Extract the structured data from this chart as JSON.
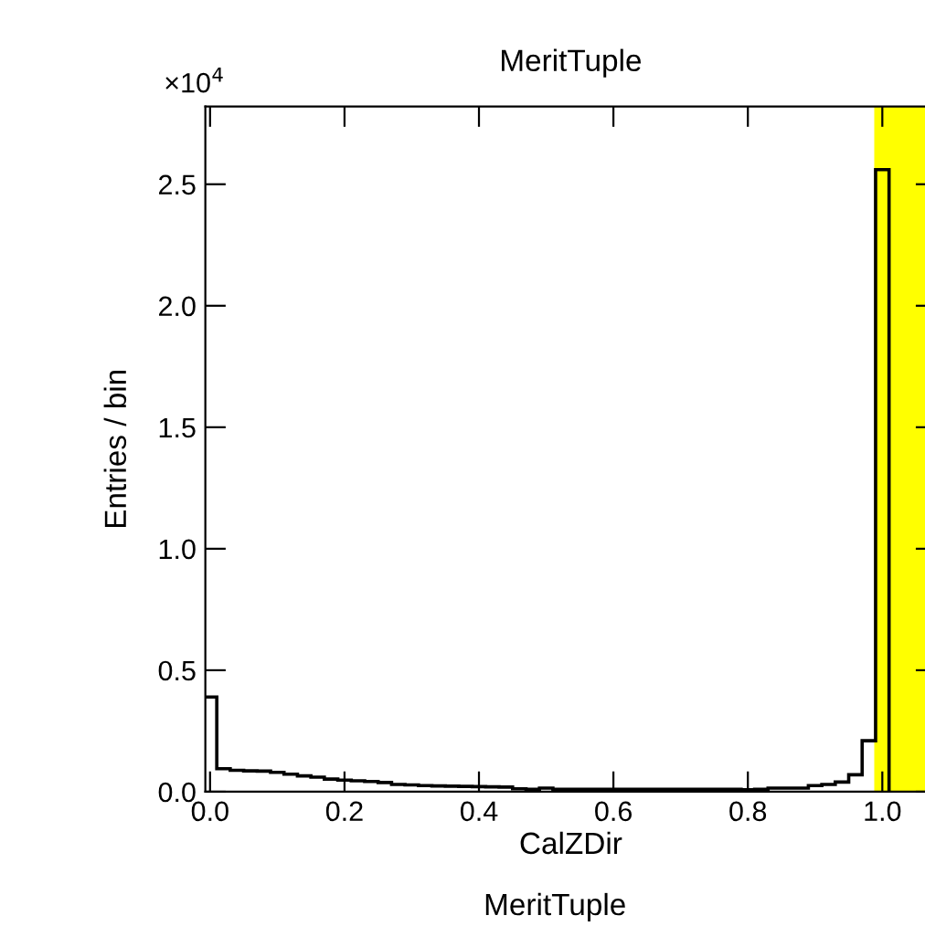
{
  "chart_data": {
    "type": "histogram",
    "title": "MeritTuple",
    "xlabel": "CalZDir",
    "ylabel": "Entries / bin",
    "annotations": [
      "×10$^{4}$",
      "MeritTuple"
    ],
    "bins": [
      -0.01,
      0.01,
      0.03,
      0.05,
      0.07,
      0.09,
      0.11,
      0.13,
      0.15,
      0.17,
      0.19,
      0.21,
      0.23,
      0.25,
      0.27,
      0.29,
      0.31,
      0.33,
      0.35,
      0.37,
      0.39,
      0.41,
      0.43,
      0.45,
      0.47,
      0.49,
      0.51,
      0.53,
      0.55,
      0.57,
      0.59,
      0.61,
      0.63,
      0.65,
      0.67,
      0.69,
      0.71,
      0.73,
      0.75,
      0.77,
      0.79,
      0.81,
      0.83,
      0.85,
      0.87,
      0.89,
      0.91,
      0.93,
      0.95,
      0.97,
      0.99,
      1.01
    ],
    "values": [
      0.39,
      0.095,
      0.088,
      0.086,
      0.085,
      0.08,
      0.072,
      0.065,
      0.06,
      0.052,
      0.048,
      0.045,
      0.042,
      0.038,
      0.03,
      0.028,
      0.025,
      0.024,
      0.023,
      0.022,
      0.021,
      0.02,
      0.019,
      0.012,
      0.01,
      0.015,
      0.01,
      0.01,
      0.01,
      0.01,
      0.01,
      0.01,
      0.01,
      0.01,
      0.01,
      0.01,
      0.01,
      0.01,
      0.01,
      0.01,
      0.008,
      0.01,
      0.015,
      0.015,
      0.015,
      0.025,
      0.03,
      0.04,
      0.07,
      0.21,
      2.56
    ],
    "color": "#000000",
    "xlim": [
      -0.007,
      1.08
    ],
    "ylim": [
      0,
      2.82
    ],
    "xticks": [
      {
        "value": 0,
        "label": "0.0"
      },
      {
        "value": 0.2,
        "label": "0.2"
      },
      {
        "value": 0.4,
        "label": "0.4"
      },
      {
        "value": 0.6,
        "label": "0.6"
      },
      {
        "value": 0.8,
        "label": "0.8"
      },
      {
        "value": 1.0,
        "label": "1.0"
      }
    ],
    "yticks": [
      {
        "value": 0,
        "label": "0.0"
      },
      0.5,
      {
        "value": 1.0,
        "label": "1.0"
      },
      1.5,
      {
        "value": 2.0,
        "label": "2.0"
      },
      2.5
    ],
    "bands": [
      {
        "axis": "x",
        "from": 0.988,
        "to": 1.08,
        "color": "#ffff00"
      }
    ],
    "grid": false
  }
}
